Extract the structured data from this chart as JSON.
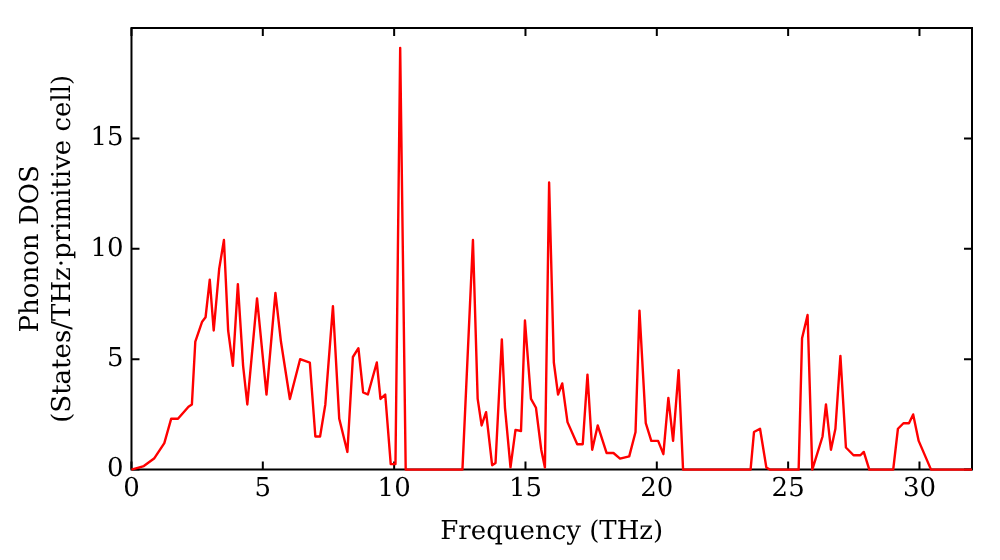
{
  "chart_data": {
    "type": "line",
    "xlabel": "Frequency (THz)",
    "ylabel": "Phonon DOS\n(States/THz·primitive cell)",
    "xlim": [
      0,
      32
    ],
    "ylim": [
      0,
      20
    ],
    "xticks": [
      0,
      5,
      10,
      15,
      20,
      25,
      30
    ],
    "yticks": [
      0,
      5,
      10,
      15
    ],
    "marker": "none",
    "line_style": "solid",
    "legend": false,
    "x": [
      0,
      0.47,
      0.86,
      1.25,
      1.51,
      1.77,
      2.17,
      2.3,
      2.43,
      2.69,
      2.82,
      2.98,
      3.13,
      3.34,
      3.52,
      3.68,
      3.86,
      4.05,
      4.25,
      4.41,
      4.78,
      5.14,
      5.48,
      5.69,
      6.03,
      6.42,
      6.79,
      7.0,
      7.18,
      7.38,
      7.67,
      7.91,
      8.22,
      8.43,
      8.64,
      8.82,
      9.0,
      9.34,
      9.48,
      9.66,
      9.87,
      10.05,
      10.23,
      10.44,
      12.6,
      13.0,
      13.18,
      13.33,
      13.5,
      13.73,
      13.86,
      14.1,
      14.22,
      14.43,
      14.62,
      14.83,
      14.98,
      15.21,
      15.4,
      15.6,
      15.74,
      15.9,
      16.08,
      16.24,
      16.4,
      16.6,
      16.97,
      17.18,
      17.36,
      17.54,
      17.75,
      18.09,
      18.35,
      18.6,
      18.95,
      19.19,
      19.34,
      19.58,
      19.79,
      20.05,
      20.25,
      20.44,
      20.62,
      20.83,
      21.0,
      23.57,
      23.7,
      23.93,
      24.17,
      24.3,
      25.4,
      25.53,
      25.74,
      25.92,
      26.31,
      26.44,
      26.63,
      26.8,
      26.99,
      27.2,
      27.49,
      27.75,
      27.88,
      28.09,
      29.0,
      29.18,
      29.39,
      29.6,
      29.76,
      29.97,
      30.44,
      32
    ],
    "series": [
      {
        "color": "#ff0000",
        "values": [
          0,
          0.16,
          0.5,
          1.2,
          2.3,
          2.3,
          2.85,
          2.95,
          5.8,
          6.7,
          6.9,
          8.6,
          6.3,
          9.1,
          10.4,
          6.3,
          4.7,
          8.4,
          4.7,
          2.95,
          7.75,
          3.4,
          8.0,
          5.8,
          3.2,
          5.0,
          4.85,
          1.5,
          1.5,
          2.95,
          7.4,
          2.3,
          0.8,
          5.1,
          5.5,
          3.5,
          3.4,
          4.85,
          3.2,
          3.4,
          0.25,
          0.25,
          19.1,
          0,
          0,
          10.4,
          3.2,
          2.0,
          2.6,
          0.2,
          0.3,
          5.9,
          2.8,
          0.1,
          1.8,
          1.75,
          6.75,
          3.2,
          2.8,
          0.9,
          0.1,
          13.0,
          4.85,
          3.4,
          3.9,
          2.15,
          1.15,
          1.15,
          4.3,
          0.9,
          2.0,
          0.75,
          0.75,
          0.5,
          0.6,
          1.7,
          7.2,
          2.1,
          1.3,
          1.3,
          0.7,
          3.25,
          1.3,
          4.5,
          0,
          0,
          1.7,
          1.85,
          0.1,
          0,
          0,
          5.95,
          7.0,
          0,
          1.5,
          2.95,
          0.9,
          1.85,
          5.15,
          1.0,
          0.65,
          0.65,
          0.8,
          0,
          0,
          1.85,
          2.1,
          2.1,
          2.5,
          1.3,
          0,
          0
        ]
      }
    ]
  }
}
